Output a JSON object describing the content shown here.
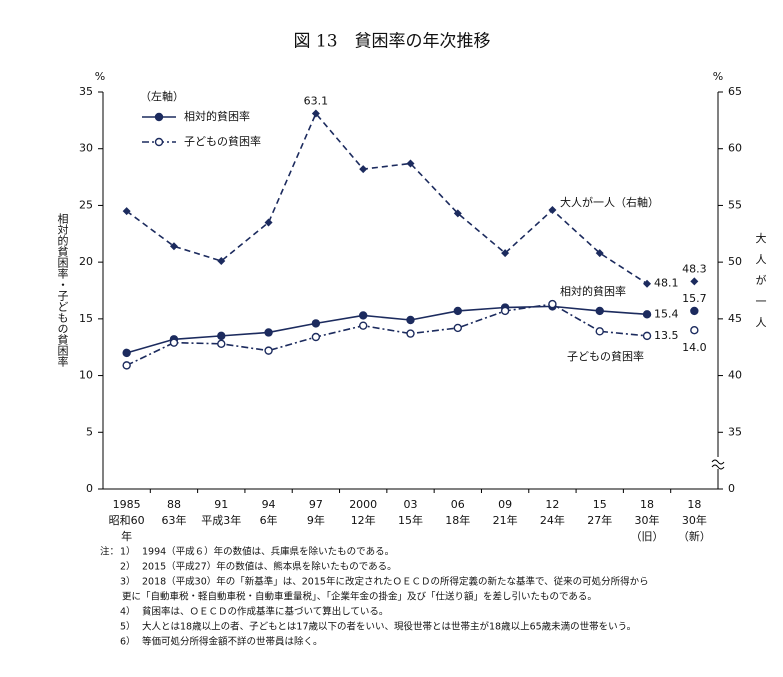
{
  "chart_data": {
    "type": "line",
    "title": "図 13　貧困率の年次推移",
    "y_unit": "%",
    "y2_unit": "%",
    "y_label": "相対的貧困率・子どもの貧困率",
    "y2_label": "大人が一人",
    "legend_title": "（左軸）",
    "categories": [
      [
        "1985",
        "昭和60",
        "年"
      ],
      [
        "88",
        "63年"
      ],
      [
        "91",
        "平成3年"
      ],
      [
        "94",
        "6年"
      ],
      [
        "97",
        "9年"
      ],
      [
        "2000",
        "12年"
      ],
      [
        "03",
        "15年"
      ],
      [
        "06",
        "18年"
      ],
      [
        "09",
        "21年"
      ],
      [
        "12",
        "24年"
      ],
      [
        "15",
        "27年"
      ],
      [
        "18",
        "30年",
        "（旧）"
      ],
      [
        "18",
        "30年",
        "（新）"
      ]
    ],
    "ylim": [
      0,
      35
    ],
    "yticks": [
      0,
      5,
      10,
      15,
      20,
      25,
      30,
      35
    ],
    "y2lim": [
      30,
      65
    ],
    "y2ticks": [
      {
        "value": 30,
        "label": "0"
      },
      35,
      40,
      45,
      50,
      55,
      60,
      65
    ],
    "series": [
      {
        "name": "相対的貧困率",
        "color": "#1c2b5e",
        "marker": "filled-circle",
        "style": "solid",
        "values": [
          12.0,
          13.2,
          13.5,
          13.8,
          14.6,
          15.3,
          14.9,
          15.7,
          16.0,
          16.1,
          15.7,
          15.4,
          15.7
        ],
        "value_labels": [
          null,
          null,
          null,
          null,
          null,
          null,
          null,
          null,
          null,
          null,
          null,
          "15.4",
          "15.7"
        ]
      },
      {
        "name": "子どもの貧困率",
        "color": "#1c2b5e",
        "marker": "open-circle",
        "style": "dashdot",
        "values": [
          10.9,
          12.9,
          12.8,
          12.2,
          13.4,
          14.4,
          13.7,
          14.2,
          15.7,
          16.3,
          13.9,
          13.5,
          14.0
        ],
        "value_labels": [
          null,
          null,
          null,
          null,
          null,
          null,
          null,
          null,
          null,
          null,
          null,
          "13.5",
          "14.0"
        ]
      },
      {
        "name": "大人が一人（右軸）",
        "color": "#1c2b5e",
        "marker": "diamond",
        "style": "dashed",
        "axis": "y2",
        "values": [
          54.5,
          51.4,
          50.1,
          53.5,
          63.1,
          58.2,
          58.7,
          54.3,
          50.8,
          54.6,
          50.8,
          48.1,
          48.3
        ],
        "value_labels": [
          null,
          null,
          null,
          null,
          "63.1",
          null,
          null,
          null,
          null,
          null,
          null,
          "48.1",
          "48.3"
        ]
      }
    ],
    "notes_prefix": "注：",
    "notes": [
      {
        "num": "1）",
        "lines": [
          "1994（平成６）年の数値は、兵庫県を除いたものである。"
        ]
      },
      {
        "num": "2）",
        "lines": [
          "2015（平成27）年の数値は、熊本県を除いたものである。"
        ]
      },
      {
        "num": "3）",
        "lines": [
          "2018（平成30）年の「新基準」は、2015年に改定されたＯＥＣＤの所得定義の新たな基準で、従来の可処分所得から",
          "更に「自動車税・軽自動車税・自動車重量税」、「企業年金の掛金」及び「仕送り額」を差し引いたものである。"
        ]
      },
      {
        "num": "4）",
        "lines": [
          "貧困率は、ＯＥＣＤの作成基準に基づいて算出している。"
        ]
      },
      {
        "num": "5）",
        "lines": [
          "大人とは18歳以上の者、子どもとは17歳以下の者をいい、現役世帯とは世帯主が18歳以上65歳未満の世帯をいう。"
        ]
      },
      {
        "num": "6）",
        "lines": [
          "等価可処分所得金額不詳の世帯員は除く。"
        ]
      }
    ]
  }
}
